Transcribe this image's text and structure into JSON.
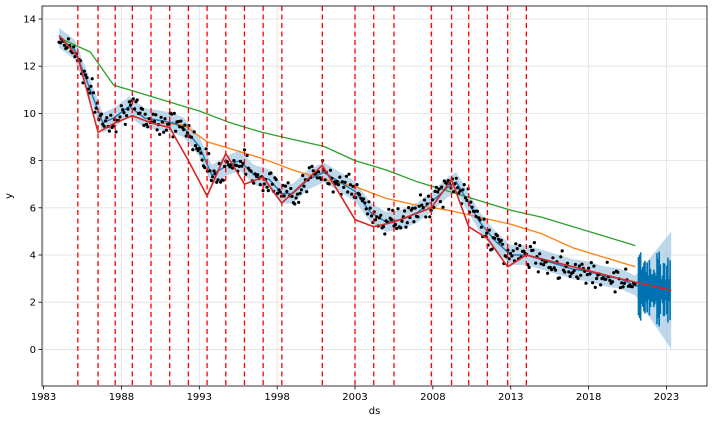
{
  "chart_data": {
    "type": "line",
    "title": "",
    "xlabel": "ds",
    "ylabel": "y",
    "xlim": [
      1982.9,
      2025.6
    ],
    "ylim": [
      -1.55,
      14.55
    ],
    "xticks": [
      1983,
      1988,
      1993,
      1998,
      2003,
      2008,
      2013,
      2018,
      2023
    ],
    "yticks": [
      0,
      2,
      4,
      6,
      8,
      10,
      12,
      14
    ],
    "grid": true,
    "changepoints": [
      1985.2,
      1986.5,
      1987.6,
      1988.7,
      1989.9,
      1991.1,
      1992.3,
      1993.5,
      1994.7,
      1995.9,
      1997.1,
      1998.3,
      2000.9,
      2003.0,
      2004.2,
      2005.5,
      2007.9,
      2009.2,
      2010.3,
      2011.5,
      2012.8,
      2014.0
    ],
    "colors": {
      "observed": "#000000",
      "trend": "#d62728",
      "forecast": "#1f77b4",
      "uncertainty": "#a6cbe3",
      "changepoint": "#ff0000",
      "long_trend_orange": "#ff7f0e",
      "long_trend_green": "#2ca02c",
      "forecast_spikes": "#0072b2"
    },
    "series": [
      {
        "role": "trend",
        "x": [
          1984.0,
          1985.2,
          1986.5,
          1987.6,
          1988.7,
          1989.9,
          1991.1,
          1992.3,
          1993.5,
          1994.7,
          1995.9,
          1997.1,
          1998.3,
          2000.9,
          2003.0,
          2004.2,
          2005.5,
          2007.9,
          2009.2,
          2010.3,
          2011.5,
          2012.8,
          2014.0,
          2017.0,
          2020.0,
          2023.3
        ],
        "y": [
          13.3,
          12.4,
          9.2,
          9.6,
          9.9,
          9.6,
          9.4,
          8.0,
          6.5,
          8.3,
          7.0,
          7.3,
          6.2,
          7.8,
          5.5,
          5.2,
          5.4,
          6.0,
          7.2,
          5.2,
          4.7,
          3.5,
          4.0,
          3.5,
          3.0,
          2.5
        ]
      },
      {
        "role": "forecast",
        "x": [
          1984.0,
          1985.0,
          1986.0,
          1986.8,
          1987.5,
          1988.5,
          1989.5,
          1990.5,
          1991.3,
          1992.0,
          1993.0,
          1993.8,
          1994.8,
          1995.6,
          1996.5,
          1997.5,
          1998.3,
          1999.0,
          2000.0,
          2001.0,
          2002.0,
          2003.0,
          2004.0,
          2005.0,
          2006.0,
          2007.0,
          2008.0,
          2009.0,
          2009.5,
          2010.3,
          2011.0,
          2012.0,
          2013.0,
          2014.0,
          2015.0,
          2016.0,
          2017.0,
          2018.0,
          2019.0,
          2020.0,
          2021.0,
          2022.0,
          2023.3
        ],
        "y": [
          13.2,
          12.7,
          11.0,
          9.6,
          9.8,
          10.3,
          9.8,
          9.7,
          9.6,
          9.4,
          8.6,
          7.4,
          7.8,
          8.0,
          7.4,
          7.2,
          6.6,
          6.6,
          7.2,
          7.5,
          7.1,
          6.7,
          5.8,
          5.4,
          5.5,
          5.8,
          6.3,
          6.9,
          7.1,
          6.2,
          5.4,
          4.6,
          4.0,
          4.0,
          3.8,
          3.6,
          3.4,
          3.3,
          3.1,
          3.0,
          2.7,
          2.6,
          2.5
        ]
      },
      {
        "role": "long_trend_orange",
        "x": [
          1990.5,
          1992.0,
          1993.5,
          1995.0,
          1997.0,
          1999.0,
          2001.0,
          2003.0,
          2005.0,
          2007.0,
          2009.0,
          2011.0,
          2013.0,
          2015.0,
          2017.0,
          2019.0,
          2021.0
        ],
        "y": [
          9.6,
          9.5,
          8.8,
          8.5,
          8.1,
          7.6,
          7.2,
          6.9,
          6.4,
          6.1,
          5.9,
          5.6,
          5.3,
          4.9,
          4.3,
          3.9,
          3.5
        ]
      },
      {
        "role": "long_trend_green",
        "x": [
          1984.0,
          1986.0,
          1987.5,
          1989.0,
          1991.0,
          1993.0,
          1995.0,
          1997.0,
          1999.0,
          2001.0,
          2003.0,
          2005.0,
          2007.0,
          2009.0,
          2011.0,
          2013.0,
          2015.0,
          2017.0,
          2019.0,
          2021.0
        ],
        "y": [
          13.2,
          12.6,
          11.2,
          10.9,
          10.5,
          10.1,
          9.6,
          9.2,
          8.9,
          8.6,
          8.0,
          7.6,
          7.1,
          6.7,
          6.3,
          5.9,
          5.6,
          5.2,
          4.8,
          4.4
        ]
      }
    ]
  }
}
